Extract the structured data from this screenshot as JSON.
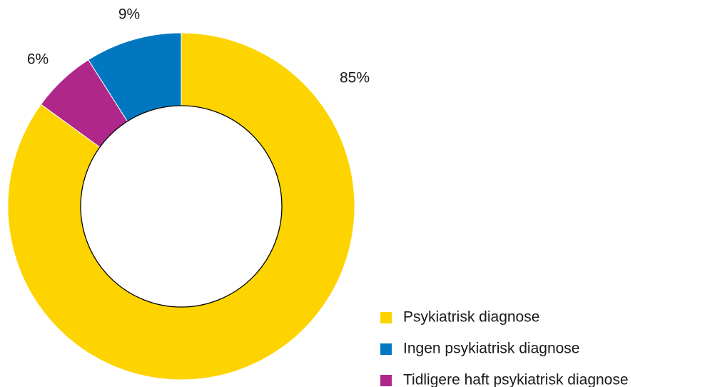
{
  "chart_data": {
    "type": "donut",
    "categories": [
      "Psykiatrisk diagnose",
      "Ingen psykiatrisk diagnose",
      "Tidligere haft psykiatrisk diagnose"
    ],
    "values": [
      85,
      9,
      6
    ],
    "value_labels": [
      "85%",
      "9%",
      "6%"
    ],
    "colors": [
      "#fdd300",
      "#0077c0",
      "#b0278b"
    ]
  }
}
